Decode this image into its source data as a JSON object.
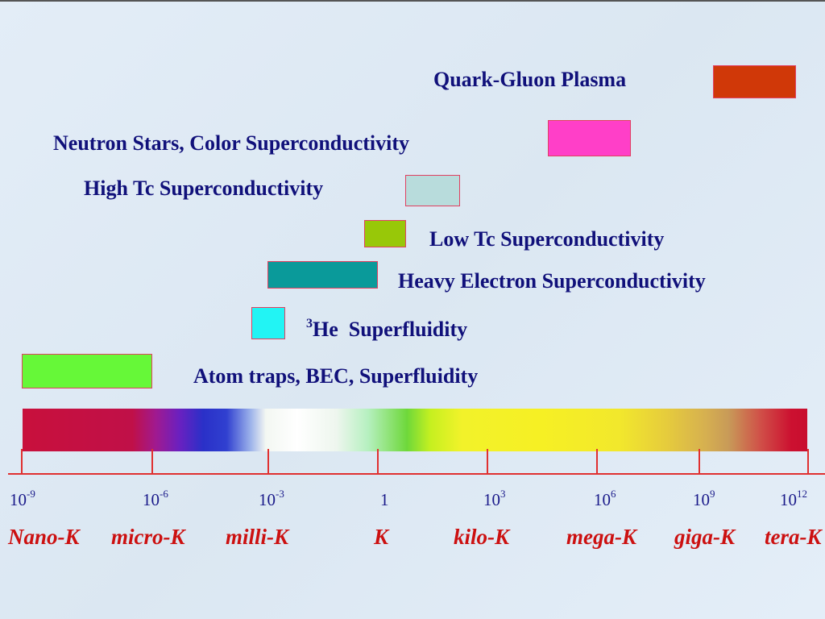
{
  "phenomena": [
    {
      "label": "Quark-Gluon Plasma",
      "color": "#d03808"
    },
    {
      "label": "Neutron Stars, Color Superconductivity",
      "color": "#ff3fc8"
    },
    {
      "label": "High Tc Superconductivity",
      "color": "#b8dcdc"
    },
    {
      "label": "Low Tc Superconductivity",
      "color": "#98c808"
    },
    {
      "label": "Heavy Electron Superconductivity",
      "color": "#0a9a9a"
    },
    {
      "label_sup": "3",
      "label": "He  Superfluidity",
      "color": "#22f4f4"
    },
    {
      "label": "Atom traps, BEC, Superfluidity",
      "color": "#66f838"
    }
  ],
  "scale": {
    "ticks": [
      {
        "base": "10",
        "exp": "-9"
      },
      {
        "base": "10",
        "exp": "-6"
      },
      {
        "base": "10",
        "exp": "-3"
      },
      {
        "base": "1",
        "exp": ""
      },
      {
        "base": "10",
        "exp": "3"
      },
      {
        "base": "10",
        "exp": "6"
      },
      {
        "base": "10",
        "exp": "9"
      },
      {
        "base": "10",
        "exp": "12"
      }
    ],
    "units": [
      "Nano-K",
      "micro-K",
      "milli-K",
      "K",
      "kilo-K",
      "mega-K",
      "giga-K",
      "tera-K"
    ]
  },
  "colors": {
    "axis": "#e03030",
    "label_text": "#10107a",
    "unit_text": "#cc1010"
  }
}
